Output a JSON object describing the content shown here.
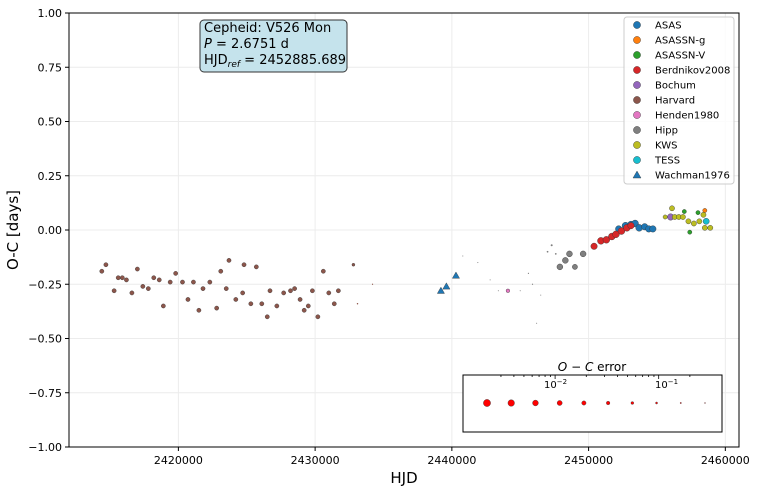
{
  "chart_data": {
    "type": "scatter",
    "xlabel": "HJD",
    "ylabel": "O-C [days]",
    "xlim": [
      2412000,
      2461000
    ],
    "ylim": [
      -1.0,
      1.0
    ],
    "x_ticks": [
      2420000,
      2430000,
      2440000,
      2450000,
      2460000
    ],
    "y_ticks": [
      -1.0,
      -0.75,
      -0.5,
      -0.25,
      0.0,
      0.25,
      0.5,
      0.75,
      1.0
    ],
    "grid": true,
    "legend_position": "top-right",
    "info_box": {
      "line1": "Cepheid: V526 Mon",
      "line2_label": "P",
      "line2_value": " = 2.6751 d",
      "line3_label": "HJD",
      "line3_sub": "ref",
      "line3_value": " = 2452885.689",
      "background": "#c5e3ec"
    },
    "series": [
      {
        "name": "ASAS",
        "color": "#1f77b4",
        "marker": "circle",
        "points": [
          [
            2452200,
            0.005,
            0.004
          ],
          [
            2452700,
            0.02,
            0.003
          ],
          [
            2453100,
            0.025,
            0.003
          ],
          [
            2453400,
            0.03,
            0.003
          ],
          [
            2453700,
            0.01,
            0.003
          ],
          [
            2454100,
            0.015,
            0.004
          ],
          [
            2454400,
            0.005,
            0.004
          ],
          [
            2454700,
            0.005,
            0.004
          ]
        ]
      },
      {
        "name": "ASASSN-g",
        "color": "#ff7f0e",
        "marker": "circle",
        "points": [
          [
            2458500,
            0.09,
            0.02
          ]
        ]
      },
      {
        "name": "ASASSN-V",
        "color": "#2ca02c",
        "marker": "circle",
        "points": [
          [
            2457000,
            0.085,
            0.02
          ],
          [
            2457400,
            -0.01,
            0.02
          ],
          [
            2458000,
            0.08,
            0.02
          ]
        ]
      },
      {
        "name": "Berdnikov2008",
        "color": "#d62728",
        "marker": "circle",
        "points": [
          [
            2450400,
            -0.075,
            0.004
          ],
          [
            2450900,
            -0.05,
            0.003
          ],
          [
            2451300,
            -0.045,
            0.003
          ],
          [
            2451700,
            -0.03,
            0.003
          ],
          [
            2452000,
            -0.02,
            0.003
          ],
          [
            2452400,
            -0.005,
            0.003
          ],
          [
            2452800,
            0.01,
            0.003
          ],
          [
            2453100,
            0.02,
            0.004
          ]
        ]
      },
      {
        "name": "Bochum",
        "color": "#9467bd",
        "marker": "circle",
        "points": [
          [
            2456000,
            0.06,
            0.004
          ]
        ]
      },
      {
        "name": "Harvard",
        "color": "#8c564b",
        "marker": "circle",
        "points": [
          [
            2414400,
            -0.19,
            0.02
          ],
          [
            2414700,
            -0.16,
            0.02
          ],
          [
            2415300,
            -0.28,
            0.02
          ],
          [
            2415600,
            -0.22,
            0.02
          ],
          [
            2415900,
            -0.22,
            0.02
          ],
          [
            2416200,
            -0.23,
            0.02
          ],
          [
            2416600,
            -0.29,
            0.02
          ],
          [
            2417000,
            -0.18,
            0.02
          ],
          [
            2417400,
            -0.26,
            0.02
          ],
          [
            2417800,
            -0.27,
            0.02
          ],
          [
            2418200,
            -0.22,
            0.02
          ],
          [
            2418600,
            -0.23,
            0.02
          ],
          [
            2418900,
            -0.35,
            0.02
          ],
          [
            2419400,
            -0.24,
            0.02
          ],
          [
            2419800,
            -0.2,
            0.02
          ],
          [
            2420300,
            -0.24,
            0.02
          ],
          [
            2420700,
            -0.32,
            0.02
          ],
          [
            2421100,
            -0.24,
            0.02
          ],
          [
            2421500,
            -0.37,
            0.02
          ],
          [
            2421800,
            -0.27,
            0.02
          ],
          [
            2422300,
            -0.24,
            0.02
          ],
          [
            2422800,
            -0.36,
            0.02
          ],
          [
            2423100,
            -0.19,
            0.02
          ],
          [
            2423500,
            -0.27,
            0.02
          ],
          [
            2423700,
            -0.14,
            0.02
          ],
          [
            2424200,
            -0.32,
            0.02
          ],
          [
            2424700,
            -0.29,
            0.02
          ],
          [
            2424800,
            -0.16,
            0.02
          ],
          [
            2425300,
            -0.34,
            0.02
          ],
          [
            2425700,
            -0.17,
            0.02
          ],
          [
            2426100,
            -0.34,
            0.02
          ],
          [
            2426500,
            -0.4,
            0.02
          ],
          [
            2426700,
            -0.28,
            0.02
          ],
          [
            2427200,
            -0.35,
            0.02
          ],
          [
            2427700,
            -0.29,
            0.02
          ],
          [
            2428200,
            -0.28,
            0.02
          ],
          [
            2428500,
            -0.27,
            0.02
          ],
          [
            2428900,
            -0.32,
            0.02
          ],
          [
            2429200,
            -0.37,
            0.02
          ],
          [
            2429500,
            -0.35,
            0.02
          ],
          [
            2429800,
            -0.28,
            0.02
          ],
          [
            2430200,
            -0.4,
            0.02
          ],
          [
            2430600,
            -0.19,
            0.02
          ],
          [
            2431000,
            -0.29,
            0.02
          ],
          [
            2431400,
            -0.34,
            0.02
          ],
          [
            2431700,
            -0.28,
            0.02
          ],
          [
            2432800,
            -0.16,
            0.05
          ],
          [
            2433100,
            -0.34,
            0.15
          ],
          [
            2434200,
            -0.25,
            0.18
          ]
        ]
      },
      {
        "name": "Henden1980",
        "color": "#e377c2",
        "marker": "circle",
        "points": [
          [
            2444100,
            -0.28,
            0.03
          ]
        ]
      },
      {
        "name": "Hipp",
        "color": "#7f7f7f",
        "marker": "circle",
        "points": [
          [
            2440800,
            -0.12,
            0.2
          ],
          [
            2441900,
            -0.15,
            0.2
          ],
          [
            2442800,
            -0.23,
            0.2
          ],
          [
            2443400,
            -0.28,
            0.2
          ],
          [
            2445000,
            -0.28,
            0.2
          ],
          [
            2445600,
            -0.2,
            0.18
          ],
          [
            2445900,
            -0.25,
            0.18
          ],
          [
            2446200,
            -0.43,
            0.2
          ],
          [
            2446500,
            -0.3,
            0.2
          ],
          [
            2447000,
            -0.1,
            0.12
          ],
          [
            2447300,
            -0.07,
            0.1
          ],
          [
            2447600,
            -0.11,
            0.12
          ],
          [
            2447900,
            -0.17,
            0.006
          ],
          [
            2448300,
            -0.14,
            0.006
          ],
          [
            2448600,
            -0.11,
            0.006
          ],
          [
            2449000,
            -0.17,
            0.01
          ],
          [
            2449600,
            -0.11,
            0.006
          ]
        ]
      },
      {
        "name": "KWS",
        "color": "#bcbd22",
        "marker": "circle",
        "points": [
          [
            2455600,
            0.06,
            0.02
          ],
          [
            2456100,
            0.1,
            0.01
          ],
          [
            2456300,
            0.06,
            0.01
          ],
          [
            2456600,
            0.06,
            0.01
          ],
          [
            2456900,
            0.06,
            0.01
          ],
          [
            2457300,
            0.04,
            0.01
          ],
          [
            2457700,
            0.03,
            0.01
          ],
          [
            2458100,
            0.04,
            0.01
          ],
          [
            2458400,
            0.07,
            0.01
          ],
          [
            2458500,
            0.01,
            0.01
          ],
          [
            2458900,
            0.01,
            0.01
          ]
        ]
      },
      {
        "name": "TESS",
        "color": "#17becf",
        "marker": "circle",
        "points": [
          [
            2458600,
            0.04,
            0.005
          ]
        ]
      },
      {
        "name": "Wachman1976",
        "color": "#1f77b4",
        "marker": "triangle",
        "points": [
          [
            2439200,
            -0.28,
            0.02
          ],
          [
            2439600,
            -0.26,
            0.02
          ],
          [
            2440300,
            -0.21,
            0.02
          ]
        ]
      }
    ],
    "error_legend": {
      "title_italic_o": "O",
      "title_minus": " − ",
      "title_italic_c": "C",
      "title_rest": " error",
      "tick_labels": [
        "10",
        "−2",
        "10",
        "−1"
      ],
      "color": "#ff0000"
    }
  }
}
